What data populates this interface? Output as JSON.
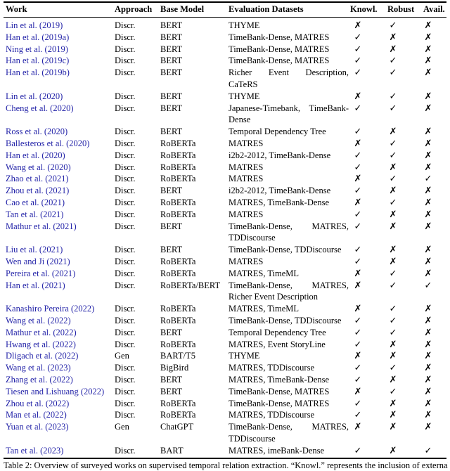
{
  "marks": {
    "check": "✓",
    "cross": "✗"
  },
  "table": {
    "header": {
      "work": "Work",
      "approach": "Approach",
      "base_model": "Base Model",
      "datasets": "Evaluation Datasets",
      "knowl": "Knowl.",
      "robust": "Robust",
      "avail": "Avail."
    },
    "rows": [
      {
        "work": "Lin et al. (2019)",
        "approach": "Discr.",
        "base_model": "BERT",
        "datasets": "THYME",
        "knowl": "cross",
        "robust": "check",
        "avail": "cross"
      },
      {
        "work": "Han et al. (2019a)",
        "approach": "Discr.",
        "base_model": "BERT",
        "datasets": "TimeBank-Dense, MATRES",
        "knowl": "check",
        "robust": "cross",
        "avail": "cross"
      },
      {
        "work": "Ning et al. (2019)",
        "approach": "Discr.",
        "base_model": "BERT",
        "datasets": "TimeBank-Dense, MATRES",
        "knowl": "check",
        "robust": "cross",
        "avail": "cross"
      },
      {
        "work": "Han et al. (2019c)",
        "approach": "Discr.",
        "base_model": "BERT",
        "datasets": "TimeBank-Dense, MATRES",
        "knowl": "check",
        "robust": "check",
        "avail": "cross"
      },
      {
        "work": "Han et al. (2019b)",
        "approach": "Discr.",
        "base_model": "BERT",
        "datasets": "Richer Event Description, CaTeRS",
        "knowl": "check",
        "robust": "check",
        "avail": "cross"
      },
      {
        "work": "Lin et al. (2020)",
        "approach": "Discr.",
        "base_model": "BERT",
        "datasets": "THYME",
        "knowl": "cross",
        "robust": "check",
        "avail": "cross"
      },
      {
        "work": "Cheng et al. (2020)",
        "approach": "Discr.",
        "base_model": "BERT",
        "datasets": "Japanese-Timebank, TimeBank-Dense",
        "knowl": "check",
        "robust": "check",
        "avail": "cross"
      },
      {
        "work": "Ross et al. (2020)",
        "approach": "Discr.",
        "base_model": "BERT",
        "datasets": "Temporal Dependency Tree",
        "knowl": "check",
        "robust": "cross",
        "avail": "cross"
      },
      {
        "work": "Ballesteros et al. (2020)",
        "approach": "Discr.",
        "base_model": "RoBERTa",
        "datasets": "MATRES",
        "knowl": "cross",
        "robust": "check",
        "avail": "cross"
      },
      {
        "work": "Han et al. (2020)",
        "approach": "Discr.",
        "base_model": "RoBERTa",
        "datasets": "i2b2-2012, TimeBank-Dense",
        "knowl": "check",
        "robust": "check",
        "avail": "cross"
      },
      {
        "work": "Wang et al. (2020)",
        "approach": "Discr.",
        "base_model": "RoBERTa",
        "datasets": "MATRES",
        "knowl": "check",
        "robust": "cross",
        "avail": "cross"
      },
      {
        "work": "Zhao et al. (2021)",
        "approach": "Discr.",
        "base_model": "RoBERTa",
        "datasets": "MATRES",
        "knowl": "cross",
        "robust": "check",
        "avail": "check"
      },
      {
        "work": "Zhou et al. (2021)",
        "approach": "Discr.",
        "base_model": "BERT",
        "datasets": "i2b2-2012, TimeBank-Dense",
        "knowl": "check",
        "robust": "cross",
        "avail": "cross"
      },
      {
        "work": "Cao et al. (2021)",
        "approach": "Discr.",
        "base_model": "RoBERTa",
        "datasets": "MATRES, TimeBank-Dense",
        "knowl": "cross",
        "robust": "check",
        "avail": "cross"
      },
      {
        "work": "Tan et al. (2021)",
        "approach": "Discr.",
        "base_model": "RoBERTa",
        "datasets": "MATRES",
        "knowl": "check",
        "robust": "cross",
        "avail": "cross"
      },
      {
        "work": "Mathur et al. (2021)",
        "approach": "Discr.",
        "base_model": "BERT",
        "datasets": "TimeBank-Dense, MATRES, TDDiscourse",
        "knowl": "check",
        "robust": "cross",
        "avail": "cross"
      },
      {
        "work": "Liu et al. (2021)",
        "approach": "Discr.",
        "base_model": "BERT",
        "datasets": "TimeBank-Dense, TDDiscourse",
        "knowl": "check",
        "robust": "cross",
        "avail": "cross"
      },
      {
        "work": "Wen and Ji (2021)",
        "approach": "Discr.",
        "base_model": "RoBERTa",
        "datasets": "MATRES",
        "knowl": "check",
        "robust": "cross",
        "avail": "cross"
      },
      {
        "work": "Pereira et al. (2021)",
        "approach": "Discr.",
        "base_model": "RoBERTa",
        "datasets": "MATRES, TimeML",
        "knowl": "cross",
        "robust": "check",
        "avail": "cross"
      },
      {
        "work": "Han et al. (2021)",
        "approach": "Discr.",
        "base_model": "RoBERTa/BERT",
        "datasets": "TimeBank-Dense, MATRES, Richer Event Description",
        "knowl": "cross",
        "robust": "check",
        "avail": "check"
      },
      {
        "work": "Kanashiro Pereira (2022)",
        "approach": "Discr.",
        "base_model": "RoBERTa",
        "datasets": "MATRES, TimeML",
        "knowl": "cross",
        "robust": "check",
        "avail": "cross"
      },
      {
        "work": "Wang et al. (2022)",
        "approach": "Discr.",
        "base_model": "RoBERTa",
        "datasets": "TimeBank-Dense, TDDiscourse",
        "knowl": "check",
        "robust": "check",
        "avail": "cross"
      },
      {
        "work": "Mathur et al. (2022)",
        "approach": "Discr.",
        "base_model": "BERT",
        "datasets": "Temporal Dependency Tree",
        "knowl": "check",
        "robust": "check",
        "avail": "cross"
      },
      {
        "work": "Hwang et al. (2022)",
        "approach": "Discr.",
        "base_model": "RoBERTa",
        "datasets": "MATRES, Event StoryLine",
        "knowl": "check",
        "robust": "cross",
        "avail": "cross"
      },
      {
        "work": "Dligach et al. (2022)",
        "approach": "Gen",
        "base_model": "BART/T5",
        "datasets": "THYME",
        "knowl": "cross",
        "robust": "cross",
        "avail": "cross"
      },
      {
        "work": "Wang et al. (2023)",
        "approach": "Discr.",
        "base_model": "BigBird",
        "datasets": "MATRES, TDDiscourse",
        "knowl": "check",
        "robust": "check",
        "avail": "cross"
      },
      {
        "work": "Zhang et al. (2022)",
        "approach": "Discr.",
        "base_model": "BERT",
        "datasets": "MATRES, TimeBank-Dense",
        "knowl": "check",
        "robust": "cross",
        "avail": "cross"
      },
      {
        "work": "Tiesen and Lishuang (2022)",
        "approach": "Discr.",
        "base_model": "BERT",
        "datasets": "TimeBank-Dense, MATRES",
        "knowl": "cross",
        "robust": "check",
        "avail": "cross"
      },
      {
        "work": "Zhou et al. (2022)",
        "approach": "Discr.",
        "base_model": "RoBERTa",
        "datasets": "TimeBank-Dense, MATRES",
        "knowl": "check",
        "robust": "cross",
        "avail": "cross"
      },
      {
        "work": "Man et al. (2022)",
        "approach": "Discr.",
        "base_model": "RoBERTa",
        "datasets": "MATRES, TDDiscourse",
        "knowl": "check",
        "robust": "cross",
        "avail": "cross"
      },
      {
        "work": "Yuan et al. (2023)",
        "approach": "Gen",
        "base_model": "ChatGPT",
        "datasets": "TimeBank-Dense, MATRES, TDDiscourse",
        "knowl": "cross",
        "robust": "cross",
        "avail": "cross"
      },
      {
        "work": "Tan et al. (2023)",
        "approach": "Discr.",
        "base_model": "BART",
        "datasets": "MATRES, imeBank-Dense",
        "knowl": "check",
        "robust": "cross",
        "avail": "check"
      }
    ]
  },
  "caption": "Table 2: Overview of surveyed works on supervised temporal relation extraction. “Knowl.” represents the inclusion of external d",
  "colors": {
    "link_blue": "#2323a8",
    "text": "#000000"
  }
}
